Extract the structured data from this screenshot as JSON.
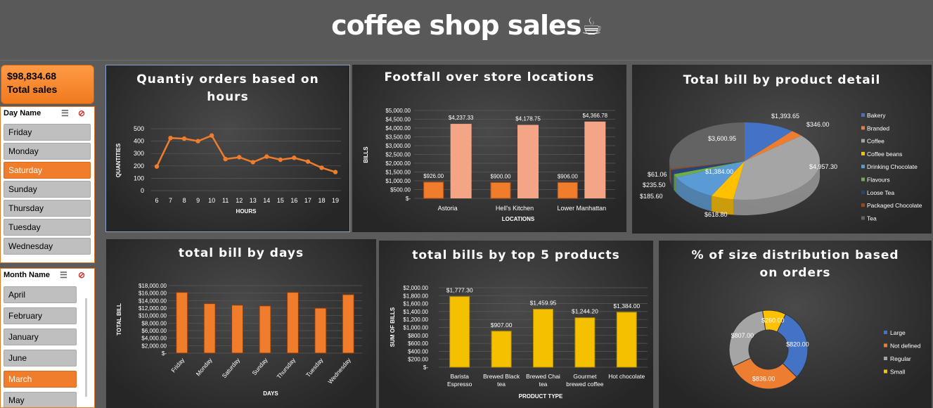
{
  "header": {
    "title": "coffee shop sales",
    "cup_icon": "coffee-cup-icon"
  },
  "kpi": {
    "value": "$98,834.68",
    "label": "Total sales"
  },
  "day_slicer": {
    "title": "Day Name",
    "items": [
      {
        "label": "Friday",
        "selected": false
      },
      {
        "label": "Monday",
        "selected": false
      },
      {
        "label": "Saturday",
        "selected": true
      },
      {
        "label": "Sunday",
        "selected": false
      },
      {
        "label": "Thursday",
        "selected": false
      },
      {
        "label": "Tuesday",
        "selected": false
      },
      {
        "label": "Wednesday",
        "selected": false
      }
    ]
  },
  "month_slicer": {
    "title": "Month Name",
    "items": [
      {
        "label": "April",
        "selected": false
      },
      {
        "label": "February",
        "selected": false
      },
      {
        "label": "January",
        "selected": false
      },
      {
        "label": "June",
        "selected": false
      },
      {
        "label": "March",
        "selected": true
      },
      {
        "label": "May",
        "selected": false
      }
    ]
  },
  "colors": {
    "orange": "#ef7d2c",
    "salmon": "#f4a586",
    "gold": "#f5c000",
    "blue": "#4472c4",
    "gray": "#a5a5a5"
  },
  "chart_data": [
    {
      "id": "hours",
      "type": "line",
      "title": "Quantiy orders based on hours",
      "xlabel": "HOURS",
      "ylabel": "QUANTITIES",
      "x": [
        "6",
        "7",
        "8",
        "9",
        "10",
        "11",
        "12",
        "13",
        "14",
        "15",
        "16",
        "17",
        "18",
        "19"
      ],
      "values": [
        195,
        425,
        420,
        400,
        445,
        255,
        270,
        230,
        275,
        250,
        265,
        235,
        185,
        150
      ],
      "ylim": [
        0,
        500
      ],
      "yticks": [
        "0",
        "100",
        "200",
        "300",
        "400",
        "500"
      ]
    },
    {
      "id": "footfall",
      "type": "bar",
      "title": "Footfall over store locations",
      "xlabel": "LOCATIONS",
      "ylabel": "BILLS",
      "categories": [
        "Astoria",
        "Hell's Kitchen",
        "Lower Manhattan"
      ],
      "series": [
        {
          "values": [
            926.0,
            900.0,
            906.0
          ],
          "labels": [
            "$926.00",
            "$900.00",
            "$906.00"
          ]
        },
        {
          "values": [
            4237.33,
            4178.75,
            4366.78
          ],
          "labels": [
            "$4,237.33",
            "$4,178.75",
            "$4,366.78"
          ]
        }
      ],
      "ylim": [
        0,
        5000
      ],
      "yticks": [
        "$-",
        "$500.00",
        "$1,000.00",
        "$1,500.00",
        "$2,000.00",
        "$2,500.00",
        "$3,000.00",
        "$3,500.00",
        "$4,000.00",
        "$4,500.00",
        "$5,000.00"
      ]
    },
    {
      "id": "product_detail",
      "type": "pie",
      "title": "Total bill by product detail",
      "slices": [
        {
          "name": "Bakery",
          "value": 1393.65,
          "label": "$1,393.65"
        },
        {
          "name": "Branded",
          "value": 346.0,
          "label": "$346.00"
        },
        {
          "name": "Coffee",
          "value": 4957.3,
          "label": "$4,957.30"
        },
        {
          "name": "Coffee beans",
          "value": 618.8,
          "label": "$618.80"
        },
        {
          "name": "Drinking Chocolate",
          "value": 1384.0,
          "label": "$1,384.00"
        },
        {
          "name": "Flavours",
          "value": 185.6,
          "label": "$185.60"
        },
        {
          "name": "Loose Tea",
          "value": 235.5,
          "label": "$235.50"
        },
        {
          "name": "Packaged Chocolate",
          "value": 61.06,
          "label": "$61.06"
        },
        {
          "name": "Tea",
          "value": 3600.95,
          "label": "$3,600.95"
        }
      ],
      "legend": "right"
    },
    {
      "id": "days",
      "type": "bar",
      "title": "total bill by days",
      "xlabel": "DAYS",
      "ylabel": "TOTAL BILL",
      "categories": [
        "Friday",
        "Monday",
        "Saturday",
        "Sunday",
        "Thursday",
        "Tuesday",
        "Wednesday"
      ],
      "values": [
        16200,
        13200,
        12800,
        12600,
        16200,
        12000,
        15600
      ],
      "ylim": [
        0,
        18000
      ],
      "yticks": [
        "$-",
        "$2,000.00",
        "$4,000.00",
        "$6,000.00",
        "$8,000.00",
        "$10,000.00",
        "$12,000.00",
        "$14,000.00",
        "$16,000.00",
        "$18,000.00"
      ]
    },
    {
      "id": "top5",
      "type": "bar",
      "title": "total bills by top 5 products",
      "xlabel": "PRODUCT TYPE",
      "ylabel": "SUM OF BILLS",
      "categories": [
        [
          "Barista",
          "Espresso"
        ],
        [
          "Brewed Black",
          "tea"
        ],
        [
          "Brewed Chai",
          "tea"
        ],
        [
          "Gourmet",
          "brewed coffee"
        ],
        [
          "Hot chocolate"
        ]
      ],
      "values": [
        1777.3,
        907.0,
        1459.95,
        1244.2,
        1384.0
      ],
      "labels": [
        "$1,777.30",
        "$907.00",
        "$1,459.95",
        "$1,244.20",
        "$1,384.00"
      ],
      "ylim": [
        0,
        2000
      ],
      "yticks": [
        "$-",
        "$200.00",
        "$400.00",
        "$600.00",
        "$800.00",
        "$1,000.00",
        "$1,200.00",
        "$1,400.00",
        "$1,600.00",
        "$1,800.00",
        "$2,000.00"
      ]
    },
    {
      "id": "size",
      "type": "pie",
      "title": "% of size distribution based on orders",
      "slices": [
        {
          "name": "Large",
          "value": 820.0,
          "label": "$820.00"
        },
        {
          "name": "Not defined",
          "value": 836.0,
          "label": "$836.00"
        },
        {
          "name": "Regular",
          "value": 807.0,
          "label": "$807.00"
        },
        {
          "name": "Small",
          "value": 260.0,
          "label": "$260.00"
        }
      ],
      "legend": "right"
    }
  ]
}
